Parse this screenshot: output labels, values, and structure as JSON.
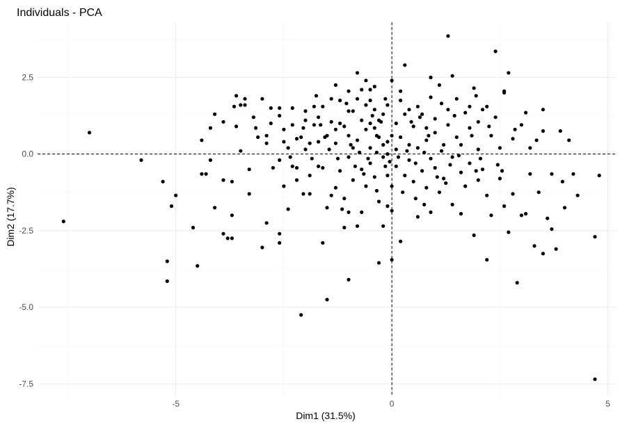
{
  "chart_data": {
    "type": "scatter",
    "title": "Individuals - PCA",
    "xlabel": "Dim1 (31.5%)",
    "ylabel": "Dim2 (17.7%)",
    "xlim": [
      -8.2,
      5.2
    ],
    "ylim": [
      -7.9,
      4.3
    ],
    "x_ticks": [
      -5,
      0,
      5
    ],
    "x_tick_labels": [
      "-5",
      "0",
      "5"
    ],
    "y_ticks": [
      -7.5,
      -5.0,
      -2.5,
      0.0,
      2.5
    ],
    "y_tick_labels": [
      "-7.5",
      "-5.0",
      "-2.5",
      "0.0",
      "2.5"
    ],
    "grid": true,
    "reference_lines": {
      "x": 0,
      "y": 0
    },
    "point_color": "#000000",
    "points": [
      [
        -7.6,
        -2.2
      ],
      [
        -7.0,
        0.7
      ],
      [
        -5.8,
        -0.2
      ],
      [
        -5.3,
        -0.9
      ],
      [
        -5.2,
        -3.5
      ],
      [
        -5.2,
        -4.15
      ],
      [
        -5.1,
        -1.7
      ],
      [
        -5.0,
        -1.35
      ],
      [
        -4.6,
        -2.4
      ],
      [
        -4.5,
        -3.65
      ],
      [
        -4.4,
        0.45
      ],
      [
        -4.4,
        -0.65
      ],
      [
        -4.3,
        -0.65
      ],
      [
        -4.2,
        0.85
      ],
      [
        -4.2,
        -0.2
      ],
      [
        -4.1,
        1.3
      ],
      [
        -4.1,
        -1.75
      ],
      [
        -3.9,
        -2.6
      ],
      [
        -3.9,
        -0.85
      ],
      [
        -3.9,
        1.05
      ],
      [
        -3.8,
        -2.75
      ],
      [
        -3.7,
        -2.75
      ],
      [
        -3.7,
        -0.9
      ],
      [
        -3.7,
        -2.0
      ],
      [
        -3.6,
        1.9
      ],
      [
        -3.6,
        0.9
      ],
      [
        -3.5,
        1.6
      ],
      [
        -3.5,
        0.1
      ],
      [
        -3.4,
        1.6
      ],
      [
        -3.4,
        1.8
      ],
      [
        -3.3,
        -1.3
      ],
      [
        -3.3,
        -0.5
      ],
      [
        -3.2,
        1.2
      ],
      [
        -3.0,
        -3.05
      ],
      [
        -3.0,
        1.8
      ],
      [
        -2.9,
        0.35
      ],
      [
        -2.9,
        -2.25
      ],
      [
        -2.9,
        0.6
      ],
      [
        -2.8,
        1.0
      ],
      [
        -2.8,
        1.5
      ],
      [
        -2.6,
        -0.2
      ],
      [
        -2.6,
        -2.6
      ],
      [
        -2.6,
        -2.9
      ],
      [
        -2.6,
        1.5
      ],
      [
        -2.5,
        0.8
      ],
      [
        -2.5,
        -1.05
      ],
      [
        -2.4,
        0.2
      ],
      [
        -2.4,
        -1.8
      ],
      [
        -2.3,
        0.95
      ],
      [
        -2.3,
        1.5
      ],
      [
        -2.2,
        0.5
      ],
      [
        -2.2,
        -0.85
      ],
      [
        -2.2,
        -0.45
      ],
      [
        -2.1,
        0.55
      ],
      [
        -2.1,
        -5.25
      ],
      [
        -2.0,
        0.15
      ],
      [
        -2.0,
        1.4
      ],
      [
        -2.0,
        1.1
      ],
      [
        -1.9,
        0.35
      ],
      [
        -1.9,
        -0.7
      ],
      [
        -1.9,
        -1.3
      ],
      [
        -1.8,
        1.55
      ],
      [
        -1.8,
        0.95
      ],
      [
        -1.7,
        1.2
      ],
      [
        -1.7,
        -0.4
      ],
      [
        -1.7,
        0.4
      ],
      [
        -1.6,
        -2.9
      ],
      [
        -1.6,
        1.55
      ],
      [
        -1.6,
        -0.45
      ],
      [
        -1.5,
        -1.75
      ],
      [
        -1.5,
        0.6
      ],
      [
        -1.4,
        1.8
      ],
      [
        -1.4,
        -1.35
      ],
      [
        -1.4,
        1.05
      ],
      [
        -1.3,
        2.25
      ],
      [
        -1.3,
        0.8
      ],
      [
        -1.3,
        0.35
      ],
      [
        -1.2,
        -0.55
      ],
      [
        -1.2,
        1.0
      ],
      [
        -1.2,
        1.75
      ],
      [
        -1.1,
        0.9
      ],
      [
        -1.1,
        -1.45
      ],
      [
        -1.0,
        1.4
      ],
      [
        -1.0,
        -0.1
      ],
      [
        -1.0,
        0.6
      ],
      [
        -1.0,
        -1.9
      ],
      [
        -0.9,
        1.4
      ],
      [
        -0.9,
        0.2
      ],
      [
        -0.9,
        -0.85
      ],
      [
        -0.8,
        1.8
      ],
      [
        -0.8,
        0.45
      ],
      [
        -0.8,
        -2.35
      ],
      [
        -0.7,
        1.1
      ],
      [
        -0.7,
        -0.5
      ],
      [
        -0.7,
        2.1
      ],
      [
        -0.6,
        1.6
      ],
      [
        -0.6,
        -1.05
      ],
      [
        -0.6,
        0.8
      ],
      [
        -0.5,
        1.0
      ],
      [
        -0.5,
        2.1
      ],
      [
        -0.5,
        -0.3
      ],
      [
        -0.5,
        0.2
      ],
      [
        -0.4,
        1.45
      ],
      [
        -0.4,
        0.85
      ],
      [
        -0.4,
        -0.75
      ],
      [
        -0.3,
        1.1
      ],
      [
        -0.3,
        0.55
      ],
      [
        -0.3,
        -1.55
      ],
      [
        -0.2,
        1.3
      ],
      [
        -0.2,
        -0.1
      ],
      [
        -0.1,
        1.6
      ],
      [
        -0.1,
        0.4
      ],
      [
        -0.1,
        -0.7
      ],
      [
        0.0,
        2.4
      ],
      [
        0.0,
        0.6
      ],
      [
        0.0,
        -1.05
      ],
      [
        0.1,
        1.0
      ],
      [
        0.1,
        0.15
      ],
      [
        0.1,
        -0.4
      ],
      [
        0.2,
        1.75
      ],
      [
        0.2,
        0.55
      ],
      [
        0.3,
        -0.7
      ],
      [
        0.3,
        1.3
      ],
      [
        0.3,
        2.9
      ],
      [
        0.4,
        0.3
      ],
      [
        0.4,
        -0.2
      ],
      [
        0.5,
        0.9
      ],
      [
        0.5,
        -0.9
      ],
      [
        0.6,
        1.55
      ],
      [
        0.6,
        0.2
      ],
      [
        0.6,
        -2.05
      ],
      [
        0.7,
        -0.55
      ],
      [
        0.7,
        1.3
      ],
      [
        0.8,
        0.85
      ],
      [
        0.8,
        -1.1
      ],
      [
        0.8,
        0.45
      ],
      [
        0.9,
        1.85
      ],
      [
        0.9,
        -0.15
      ],
      [
        1.0,
        1.15
      ],
      [
        1.0,
        -0.45
      ],
      [
        1.0,
        0.7
      ],
      [
        1.1,
        2.25
      ],
      [
        1.1,
        -1.25
      ],
      [
        1.2,
        0.3
      ],
      [
        1.2,
        -0.8
      ],
      [
        1.3,
        1.45
      ],
      [
        1.3,
        3.85
      ],
      [
        1.3,
        0.95
      ],
      [
        1.4,
        -0.1
      ],
      [
        1.4,
        -1.65
      ],
      [
        1.5,
        0.55
      ],
      [
        1.5,
        1.8
      ],
      [
        1.6,
        -0.6
      ],
      [
        1.6,
        0.3
      ],
      [
        1.7,
        1.35
      ],
      [
        1.7,
        -1.05
      ],
      [
        1.8,
        0.85
      ],
      [
        1.8,
        -0.3
      ],
      [
        1.9,
        2.15
      ],
      [
        1.9,
        -2.65
      ],
      [
        2.0,
        1.05
      ],
      [
        2.0,
        0.15
      ],
      [
        2.0,
        -0.85
      ],
      [
        2.1,
        1.45
      ],
      [
        2.1,
        -0.5
      ],
      [
        2.2,
        -1.35
      ],
      [
        2.2,
        -3.45
      ],
      [
        2.3,
        0.6
      ],
      [
        2.3,
        -2.0
      ],
      [
        2.4,
        3.35
      ],
      [
        2.4,
        1.2
      ],
      [
        2.5,
        0.2
      ],
      [
        2.5,
        -0.8
      ],
      [
        2.6,
        -1.7
      ],
      [
        2.6,
        2.05
      ],
      [
        2.7,
        2.65
      ],
      [
        2.8,
        0.5
      ],
      [
        2.8,
        -1.3
      ],
      [
        2.9,
        -4.2
      ],
      [
        3.0,
        -2.0
      ],
      [
        3.0,
        0.95
      ],
      [
        3.1,
        1.35
      ],
      [
        3.2,
        -0.65
      ],
      [
        3.2,
        0.2
      ],
      [
        3.3,
        -3.0
      ],
      [
        3.4,
        -1.25
      ],
      [
        3.5,
        -3.25
      ],
      [
        3.5,
        0.75
      ],
      [
        3.6,
        -2.1
      ],
      [
        3.7,
        -2.45
      ],
      [
        3.7,
        -0.65
      ],
      [
        3.8,
        -3.1
      ],
      [
        3.9,
        0.75
      ],
      [
        4.0,
        -1.75
      ],
      [
        4.1,
        0.45
      ],
      [
        4.3,
        -1.35
      ],
      [
        4.7,
        -2.7
      ],
      [
        4.7,
        -7.35
      ],
      [
        4.8,
        -0.7
      ],
      [
        -0.1,
        0.0
      ],
      [
        -1.5,
        -4.75
      ],
      [
        -1.0,
        -4.1
      ],
      [
        -0.3,
        -3.55
      ],
      [
        0.0,
        -3.45
      ],
      [
        0.2,
        -2.85
      ],
      [
        -0.2,
        -2.35
      ],
      [
        -0.1,
        -1.7
      ],
      [
        0.0,
        -1.85
      ],
      [
        -1.1,
        -2.4
      ],
      [
        -0.7,
        -1.9
      ],
      [
        -0.8,
        2.65
      ],
      [
        -0.6,
        2.4
      ],
      [
        -1.0,
        2.05
      ],
      [
        -0.4,
        2.2
      ],
      [
        0.9,
        2.5
      ],
      [
        1.4,
        2.55
      ],
      [
        2.6,
        2.0
      ],
      [
        3.5,
        1.45
      ],
      [
        2.2,
        1.55
      ],
      [
        1.8,
        1.55
      ],
      [
        -2.3,
        -0.4
      ],
      [
        -2.5,
        0.4
      ],
      [
        -0.2,
        0.3
      ],
      [
        0.15,
        -0.1
      ],
      [
        0.35,
        0.1
      ],
      [
        0.55,
        -0.3
      ],
      [
        0.75,
        0.05
      ],
      [
        -0.15,
        -0.4
      ],
      [
        -0.35,
        0.05
      ],
      [
        -0.55,
        -0.15
      ],
      [
        1.15,
        0.1
      ],
      [
        1.35,
        -0.35
      ],
      [
        1.55,
        -0.05
      ],
      [
        -0.95,
        0.3
      ],
      [
        -1.25,
        -0.15
      ],
      [
        -1.45,
        0.15
      ],
      [
        0.45,
        1.05
      ],
      [
        0.65,
        1.2
      ],
      [
        -0.25,
        1.05
      ],
      [
        -0.45,
        1.25
      ],
      [
        1.05,
        -0.75
      ],
      [
        1.25,
        -0.95
      ],
      [
        -0.65,
        -0.65
      ],
      [
        -0.85,
        -0.4
      ],
      [
        0.25,
        -1.25
      ],
      [
        0.55,
        -1.45
      ],
      [
        -0.35,
        -1.2
      ],
      [
        -1.65,
        0.95
      ],
      [
        1.85,
        0.6
      ],
      [
        2.05,
        -0.15
      ],
      [
        2.45,
        -0.35
      ],
      [
        2.25,
        0.9
      ],
      [
        -2.05,
        0.85
      ],
      [
        -1.85,
        -0.15
      ],
      [
        -3.1,
        0.55
      ],
      [
        3.35,
        0.45
      ],
      [
        3.1,
        -1.95
      ],
      [
        2.7,
        -2.55
      ],
      [
        -3.15,
        0.85
      ],
      [
        -2.75,
        -0.45
      ],
      [
        1.6,
        -1.95
      ],
      [
        0.9,
        -1.9
      ],
      [
        -1.3,
        -1.1
      ],
      [
        -2.6,
        1.25
      ],
      [
        1.95,
        1.9
      ],
      [
        0.2,
        2.05
      ],
      [
        -0.5,
        1.75
      ],
      [
        2.85,
        0.8
      ],
      [
        -1.05,
        1.65
      ],
      [
        1.45,
        1.25
      ],
      [
        -3.65,
        1.55
      ],
      [
        4.2,
        -0.65
      ],
      [
        -0.15,
        1.8
      ],
      [
        0.4,
        1.45
      ],
      [
        1.15,
        1.65
      ],
      [
        -1.75,
        1.9
      ],
      [
        2.55,
        -0.55
      ],
      [
        -2.35,
        -0.1
      ],
      [
        3.95,
        -0.9
      ],
      [
        -2.05,
        -1.3
      ],
      [
        0.75,
        -1.65
      ],
      [
        -1.15,
        -1.8
      ],
      [
        -0.35,
        0.6
      ],
      [
        0.85,
        0.6
      ],
      [
        1.95,
        -0.55
      ],
      [
        -1.55,
        0.55
      ],
      [
        -0.75,
        0.05
      ],
      [
        -0.05,
        -0.25
      ]
    ]
  }
}
